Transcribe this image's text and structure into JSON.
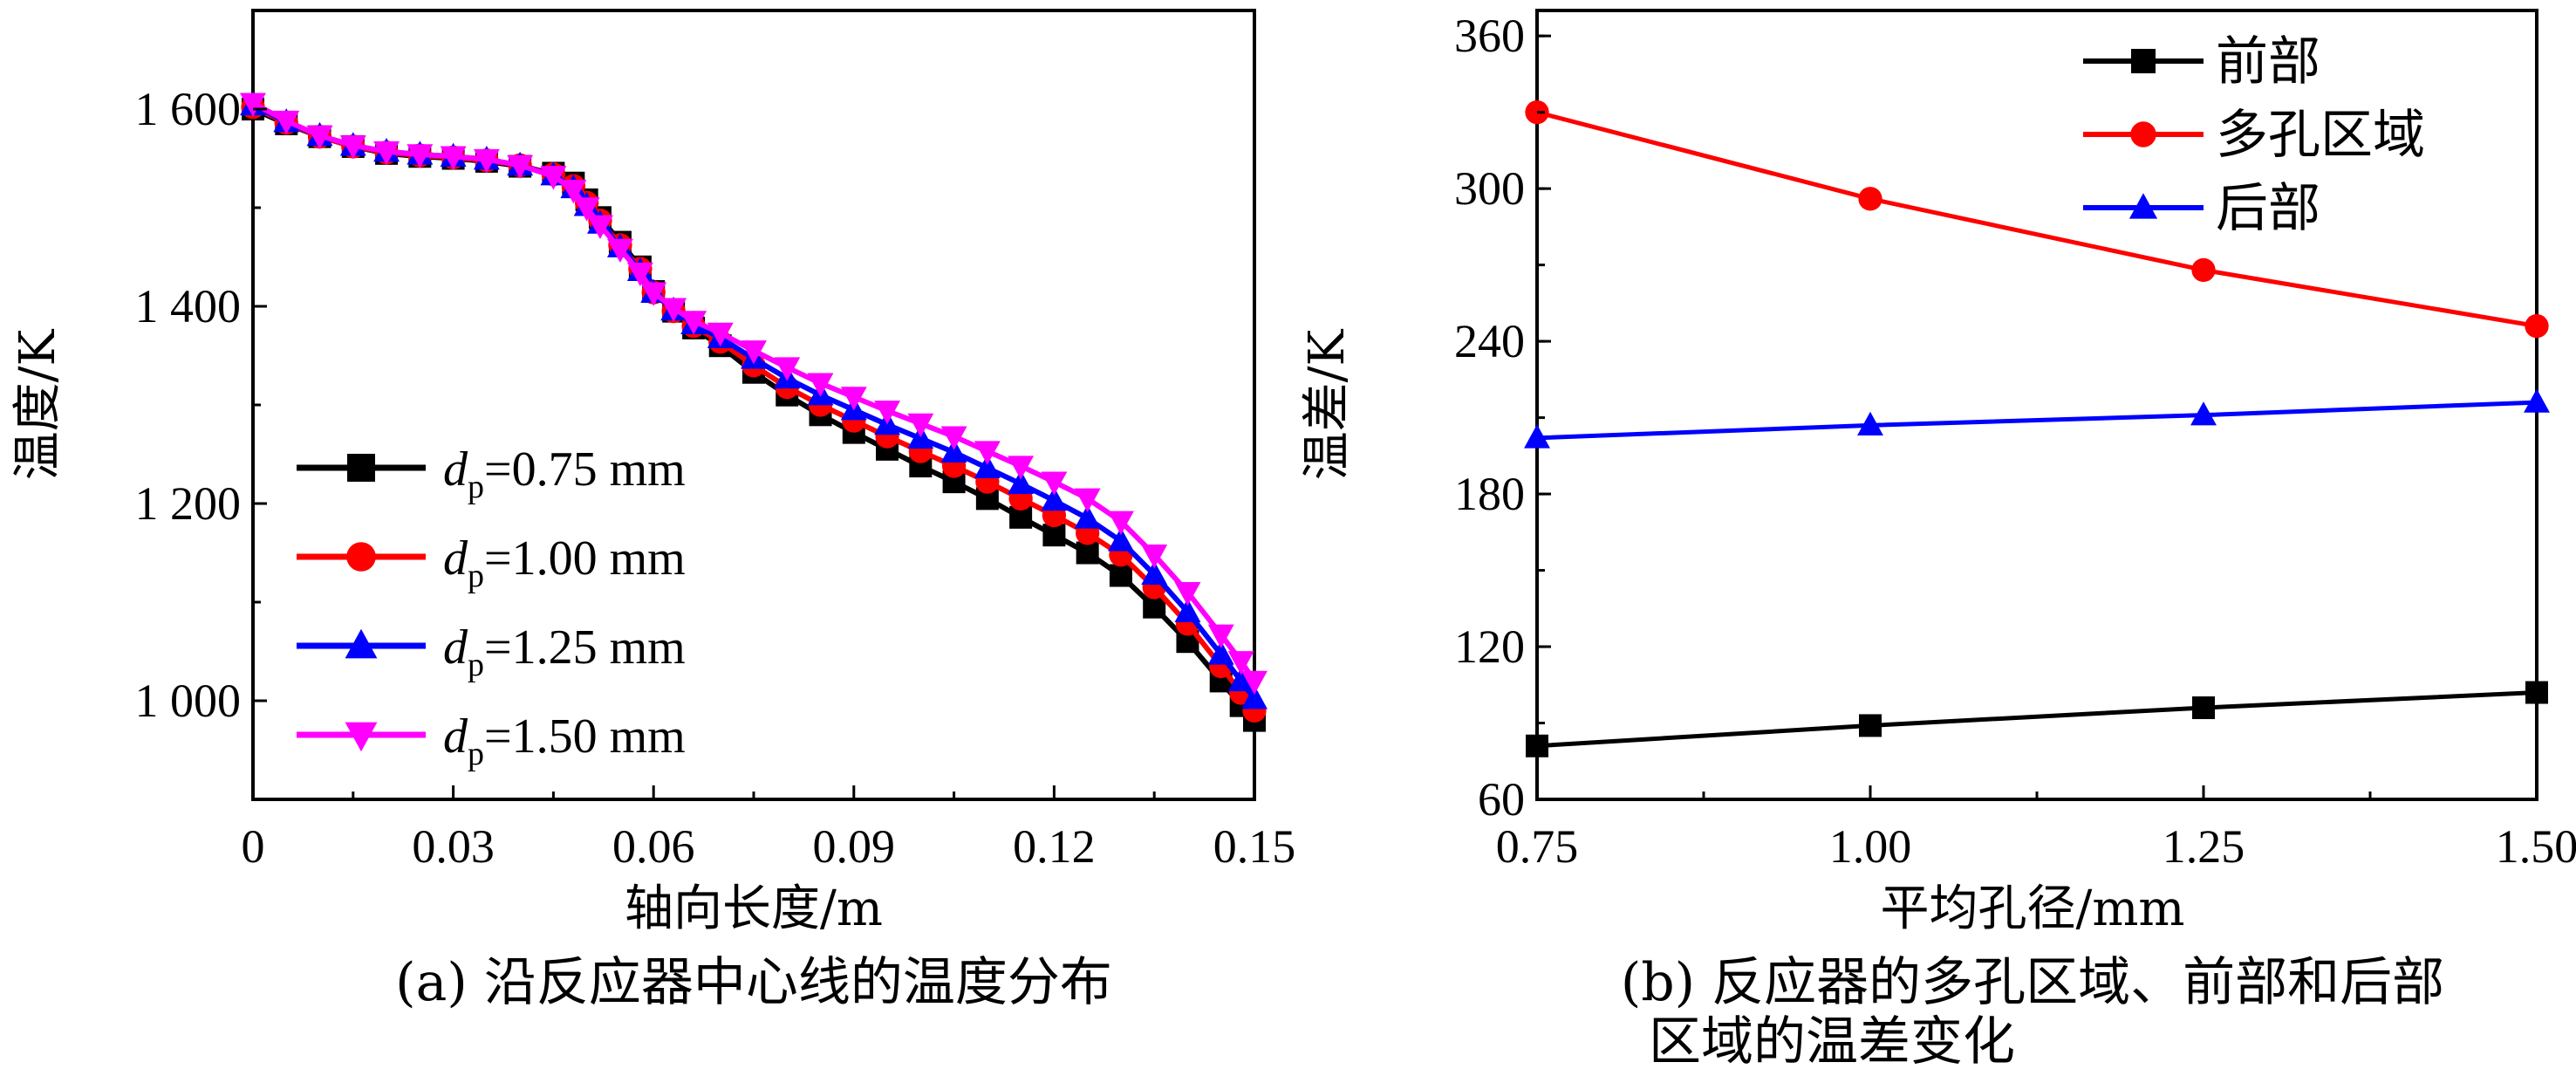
{
  "chart_data": [
    {
      "id": "a",
      "type": "line",
      "caption": "(a) 沿反应器中心线的温度分布",
      "xlabel": "轴向长度/m",
      "ylabel": "温度/K",
      "xlim": [
        0,
        0.15
      ],
      "ylim": [
        900,
        1700
      ],
      "xticks": [
        0,
        0.03,
        0.06,
        0.09,
        0.12,
        0.15
      ],
      "xtick_labels": [
        "0",
        "0.03",
        "0.06",
        "0.09",
        "0.12",
        "0.15"
      ],
      "yticks": [
        1000,
        1200,
        1400,
        1600
      ],
      "ytick_labels": [
        "1 000",
        "1 200",
        "1 400",
        "1 600"
      ],
      "legend_position": "lower-left",
      "series": [
        {
          "name": "dp=0.75 mm",
          "label_var": "d",
          "label_sub": "p",
          "label_rest": "=0.75 mm",
          "color": "#000000",
          "marker": "square",
          "x": [
            0,
            0.005,
            0.01,
            0.015,
            0.02,
            0.025,
            0.03,
            0.035,
            0.04,
            0.045,
            0.048,
            0.05,
            0.052,
            0.055,
            0.058,
            0.06,
            0.063,
            0.066,
            0.07,
            0.075,
            0.08,
            0.085,
            0.09,
            0.095,
            0.1,
            0.105,
            0.11,
            0.115,
            0.12,
            0.125,
            0.13,
            0.135,
            0.14,
            0.145,
            0.148,
            0.15
          ],
          "y": [
            1600,
            1585,
            1572,
            1562,
            1555,
            1552,
            1550,
            1547,
            1542,
            1535,
            1525,
            1508,
            1490,
            1465,
            1440,
            1415,
            1395,
            1378,
            1360,
            1333,
            1310,
            1290,
            1272,
            1255,
            1238,
            1222,
            1205,
            1186,
            1168,
            1150,
            1127,
            1095,
            1060,
            1020,
            995,
            980
          ]
        },
        {
          "name": "dp=1.00 mm",
          "label_var": "d",
          "label_sub": "p",
          "label_rest": "=1.00 mm",
          "color": "#ff0000",
          "marker": "circle",
          "x": [
            0,
            0.005,
            0.01,
            0.015,
            0.02,
            0.025,
            0.03,
            0.035,
            0.04,
            0.045,
            0.048,
            0.05,
            0.052,
            0.055,
            0.058,
            0.06,
            0.063,
            0.066,
            0.07,
            0.075,
            0.08,
            0.085,
            0.09,
            0.095,
            0.1,
            0.105,
            0.11,
            0.115,
            0.12,
            0.125,
            0.13,
            0.135,
            0.14,
            0.145,
            0.148,
            0.15
          ],
          "y": [
            1602,
            1586,
            1572,
            1562,
            1556,
            1553,
            1551,
            1548,
            1543,
            1534,
            1522,
            1505,
            1487,
            1462,
            1438,
            1414,
            1395,
            1380,
            1364,
            1340,
            1318,
            1300,
            1284,
            1268,
            1253,
            1238,
            1222,
            1205,
            1188,
            1170,
            1148,
            1115,
            1078,
            1035,
            1008,
            990
          ]
        },
        {
          "name": "dp=1.25 mm",
          "label_var": "d",
          "label_sub": "p",
          "label_rest": "=1.25 mm",
          "color": "#0000ff",
          "marker": "triangle",
          "x": [
            0,
            0.005,
            0.01,
            0.015,
            0.02,
            0.025,
            0.03,
            0.035,
            0.04,
            0.045,
            0.048,
            0.05,
            0.052,
            0.055,
            0.058,
            0.06,
            0.063,
            0.066,
            0.07,
            0.075,
            0.08,
            0.085,
            0.09,
            0.095,
            0.1,
            0.105,
            0.11,
            0.115,
            0.12,
            0.125,
            0.13,
            0.135,
            0.14,
            0.145,
            0.148,
            0.15
          ],
          "y": [
            1604,
            1587,
            1573,
            1563,
            1557,
            1554,
            1552,
            1549,
            1543,
            1533,
            1520,
            1502,
            1484,
            1460,
            1436,
            1414,
            1396,
            1382,
            1368,
            1347,
            1327,
            1310,
            1295,
            1280,
            1266,
            1252,
            1236,
            1220,
            1203,
            1185,
            1162,
            1128,
            1090,
            1047,
            1020,
            1002
          ]
        },
        {
          "name": "dp=1.50 mm",
          "label_var": "d",
          "label_sub": "p",
          "label_rest": "=1.50 mm",
          "color": "#ff00ff",
          "marker": "triangle-down",
          "x": [
            0,
            0.005,
            0.01,
            0.015,
            0.02,
            0.025,
            0.03,
            0.035,
            0.04,
            0.045,
            0.048,
            0.05,
            0.052,
            0.055,
            0.058,
            0.06,
            0.063,
            0.066,
            0.07,
            0.075,
            0.08,
            0.085,
            0.09,
            0.095,
            0.1,
            0.105,
            0.11,
            0.115,
            0.12,
            0.125,
            0.13,
            0.135,
            0.14,
            0.145,
            0.148,
            0.15
          ],
          "y": [
            1606,
            1588,
            1573,
            1563,
            1557,
            1554,
            1552,
            1549,
            1543,
            1532,
            1518,
            1500,
            1482,
            1458,
            1434,
            1414,
            1398,
            1385,
            1373,
            1355,
            1338,
            1322,
            1308,
            1294,
            1281,
            1268,
            1253,
            1238,
            1222,
            1205,
            1182,
            1148,
            1110,
            1067,
            1040,
            1020
          ]
        }
      ]
    },
    {
      "id": "b",
      "type": "line",
      "caption_lines": [
        "(b) 反应器的多孔区域、前部和后部",
        "区域的温差变化"
      ],
      "xlabel": "平均孔径/mm",
      "ylabel": "温差/K",
      "xlim": [
        0.75,
        1.5
      ],
      "ylim": [
        60,
        370
      ],
      "xticks": [
        0.75,
        1.0,
        1.25,
        1.5
      ],
      "xtick_labels": [
        "0.75",
        "1.00",
        "1.25",
        "1.50"
      ],
      "yticks": [
        60,
        120,
        180,
        240,
        300,
        360
      ],
      "ytick_labels": [
        "60",
        "120",
        "180",
        "240",
        "300",
        "360"
      ],
      "legend_position": "top-right",
      "series": [
        {
          "name": "前部",
          "color": "#000000",
          "marker": "square",
          "x": [
            0.75,
            1.0,
            1.25,
            1.5
          ],
          "y": [
            81,
            89,
            96,
            102
          ]
        },
        {
          "name": "多孔区域",
          "color": "#ff0000",
          "marker": "circle",
          "x": [
            0.75,
            1.0,
            1.25,
            1.5
          ],
          "y": [
            330,
            296,
            268,
            246
          ]
        },
        {
          "name": "后部",
          "color": "#0000ff",
          "marker": "triangle",
          "x": [
            0.75,
            1.0,
            1.25,
            1.5
          ],
          "y": [
            202,
            207,
            211,
            216
          ]
        }
      ]
    }
  ]
}
